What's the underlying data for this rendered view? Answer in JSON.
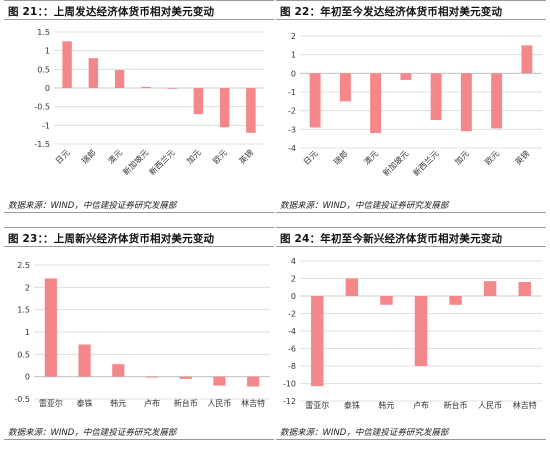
{
  "charts": [
    {
      "fig_label": "图 21：",
      "title": "：上周发达经济体货币相对美元变动",
      "source": "数据来源：WIND，中信建投证券研究发展部",
      "chart_data": {
        "type": "bar",
        "categories": [
          "日元",
          "瑞郎",
          "澳元",
          "新加坡元",
          "新西兰元",
          "加元",
          "欧元",
          "英镑"
        ],
        "values": [
          1.25,
          0.8,
          0.48,
          0.03,
          -0.02,
          -0.7,
          -1.05,
          -1.2
        ],
        "yticks": [
          -1.5,
          -1,
          -0.5,
          0,
          0.5,
          1,
          1.5
        ],
        "ylim": [
          -1.5,
          1.5
        ],
        "tick_labels_rotated": true,
        "bar_color": "#f4878a"
      }
    },
    {
      "fig_label": "图 22：",
      "title": "年初至今发达经济体货币相对美元变动",
      "source": "数据来源：WIND，中信建投证券研究发展部",
      "chart_data": {
        "type": "bar",
        "categories": [
          "日元",
          "瑞郎",
          "澳元",
          "新加坡元",
          "新西兰元",
          "加元",
          "欧元",
          "英镑"
        ],
        "values": [
          -2.9,
          -1.5,
          -3.2,
          -0.35,
          -2.5,
          -3.1,
          -2.95,
          1.5
        ],
        "yticks": [
          -4,
          -3,
          -2,
          -1,
          0,
          1,
          2
        ],
        "ylim": [
          -4,
          2
        ],
        "tick_labels_rotated": true,
        "bar_color": "#f4878a"
      }
    },
    {
      "fig_label": "图 23：",
      "title": "：上周新兴经济体货币相对美元变动",
      "source": "数据来源：WIND，中信建投证券研究发展部",
      "chart_data": {
        "type": "bar",
        "categories": [
          "雷亚尔",
          "泰铢",
          "韩元",
          "卢布",
          "新台币",
          "人民币",
          "林吉特"
        ],
        "values": [
          2.2,
          0.72,
          0.28,
          -0.02,
          -0.05,
          -0.2,
          -0.22
        ],
        "yticks": [
          -0.5,
          0,
          0.5,
          1,
          1.5,
          2,
          2.5
        ],
        "ylim": [
          -0.5,
          2.5
        ],
        "tick_labels_rotated": false,
        "bar_color": "#f4878a"
      }
    },
    {
      "fig_label": "图 24：",
      "title": "年初至今新兴经济体货币相对美元变动",
      "source": "数据来源：WIND，中信建投证券研究发展部",
      "chart_data": {
        "type": "bar",
        "categories": [
          "雷亚尔",
          "泰铢",
          "韩元",
          "卢布",
          "新台币",
          "人民币",
          "林吉特"
        ],
        "values": [
          -10.3,
          2.0,
          -1.0,
          -8.0,
          -1.0,
          1.7,
          1.6
        ],
        "yticks": [
          -12,
          -10,
          -8,
          -6,
          -4,
          -2,
          0,
          2,
          4
        ],
        "ylim": [
          -12,
          4
        ],
        "tick_labels_rotated": false,
        "bar_color": "#f4878a"
      }
    }
  ]
}
